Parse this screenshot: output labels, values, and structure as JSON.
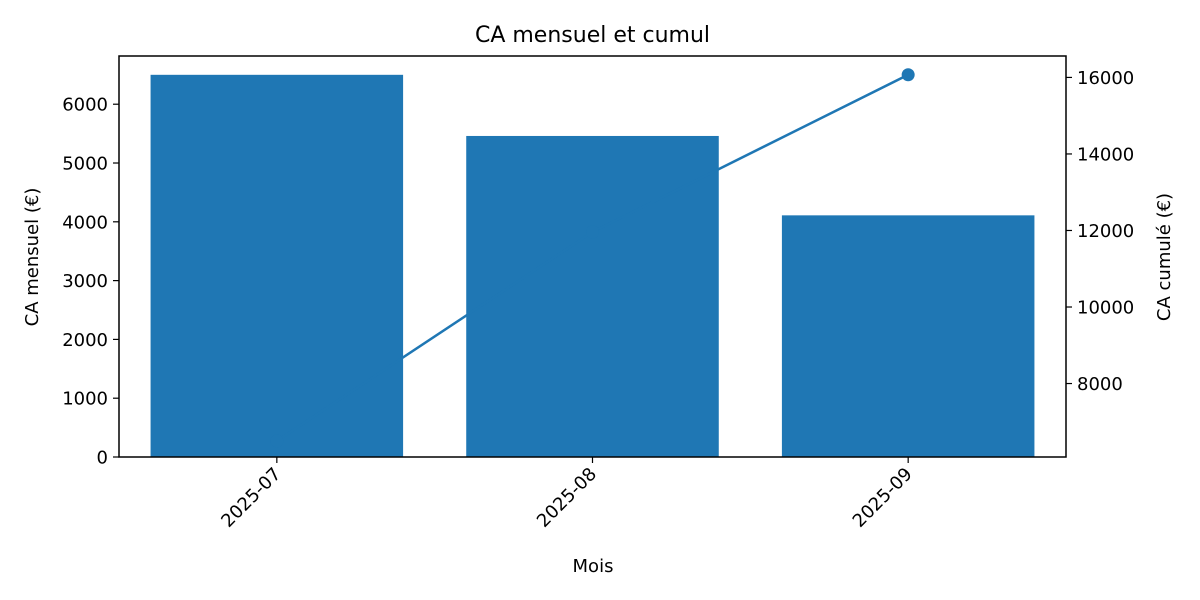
{
  "chart_data": {
    "type": "bar",
    "title": "CA mensuel et cumul",
    "xlabel": "Mois",
    "ylabel": "CA mensuel (€)",
    "y2label": "CA cumulé (€)",
    "categories": [
      "2025-07",
      "2025-08",
      "2025-09"
    ],
    "series": [
      {
        "type": "bar",
        "axis": "left",
        "values": [
          6500,
          5460,
          4110
        ]
      },
      {
        "type": "line",
        "axis": "right",
        "values": [
          6500,
          11960,
          16070
        ]
      }
    ],
    "ylim": [
      0,
      6820
    ],
    "y2lim": [
      6080,
      16560
    ],
    "yticks": [
      0,
      1000,
      2000,
      3000,
      4000,
      5000,
      6000
    ],
    "y2ticks": [
      8000,
      10000,
      12000,
      14000,
      16000
    ],
    "grid": false,
    "colors": {
      "bar": "#1f77b4",
      "line": "#1f77b4",
      "axis": "#000000"
    }
  }
}
